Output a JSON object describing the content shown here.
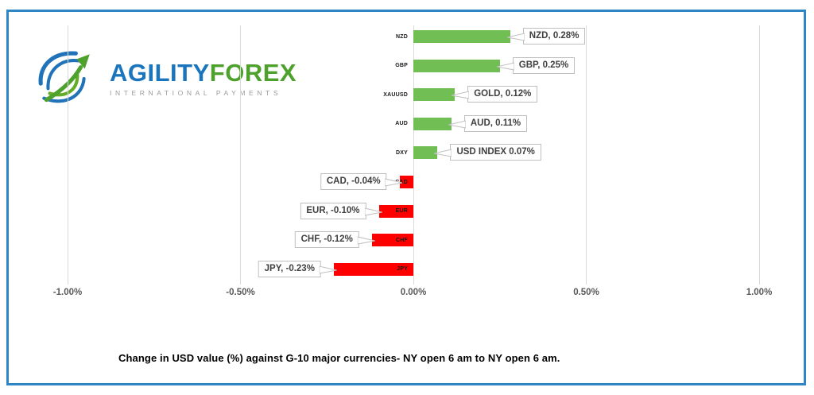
{
  "frame": {
    "border_color": "#2e86c5"
  },
  "logo": {
    "brand_primary": "AGILITY",
    "brand_secondary": "FOREX",
    "tagline": "INTERNATIONAL PAYMENTS",
    "blue": "#1b75bc",
    "green": "#4fa12d"
  },
  "chart_data": {
    "type": "bar",
    "orientation": "horizontal",
    "title": "Change in  USD value (%)  against  G-10 major currencies- NY open 6 am to NY open 6 am.",
    "categories": [
      "NZD",
      "GBP",
      "XAUUSD",
      "AUD",
      "DXY",
      "CAD",
      "EUR",
      "CHF",
      "JPY"
    ],
    "values": [
      0.28,
      0.25,
      0.12,
      0.11,
      0.07,
      -0.04,
      -0.1,
      -0.12,
      -0.23
    ],
    "data_labels": [
      "NZD, 0.28%",
      "GBP, 0.25%",
      "GOLD, 0.12%",
      "AUD, 0.11%",
      "USD INDEX 0.07%",
      "CAD, -0.04%",
      "EUR, -0.10%",
      "CHF, -0.12%",
      "JPY, -0.23%"
    ],
    "x_ticks": [
      "-1.00%",
      "-0.50%",
      "0.00%",
      "0.50%",
      "1.00%"
    ],
    "x_tick_values": [
      -1.0,
      -0.5,
      0.0,
      0.5,
      1.0
    ],
    "xlim": [
      -1.0,
      1.0
    ],
    "positive_color": "#70be54",
    "negative_color": "#ff0000",
    "gridline_color": "#d9d9d9",
    "grid": true,
    "legend": false
  }
}
